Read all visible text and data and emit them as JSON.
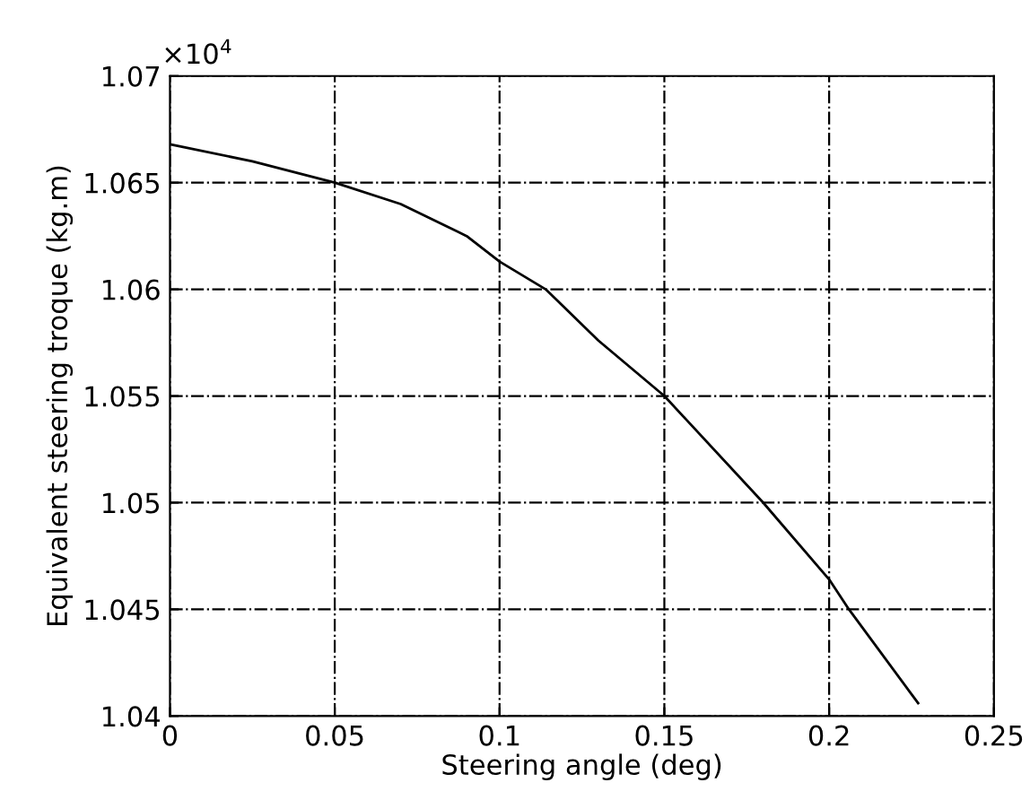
{
  "chart_data": {
    "type": "line",
    "xlabel": "Steering angle (deg)",
    "ylabel": "Equivalent steering troque (kg.m)",
    "annotations": [
      "×10$^{4}$"
    ],
    "x": [
      0,
      0.025,
      0.05,
      0.07,
      0.09,
      0.1,
      0.114,
      0.13,
      0.15,
      0.18,
      0.2,
      0.206,
      0.227
    ],
    "series": [
      {
        "color": "#000000",
        "values": [
          1.0668,
          1.066,
          1.065,
          1.064,
          1.0625,
          1.0613,
          1.06,
          1.0576,
          1.055,
          1.05,
          1.0464,
          1.045,
          1.0406
        ]
      }
    ],
    "xlim": [
      0,
      0.25
    ],
    "xticks": [
      0,
      0.05,
      0.1,
      0.15,
      0.2,
      0.25
    ],
    "ylim": [
      1.04,
      1.07
    ],
    "yticks": [
      1.04,
      1.045,
      1.05,
      1.055,
      1.06,
      1.065,
      1.07
    ],
    "grid": true,
    "marker": "none",
    "line_style": "solid"
  }
}
